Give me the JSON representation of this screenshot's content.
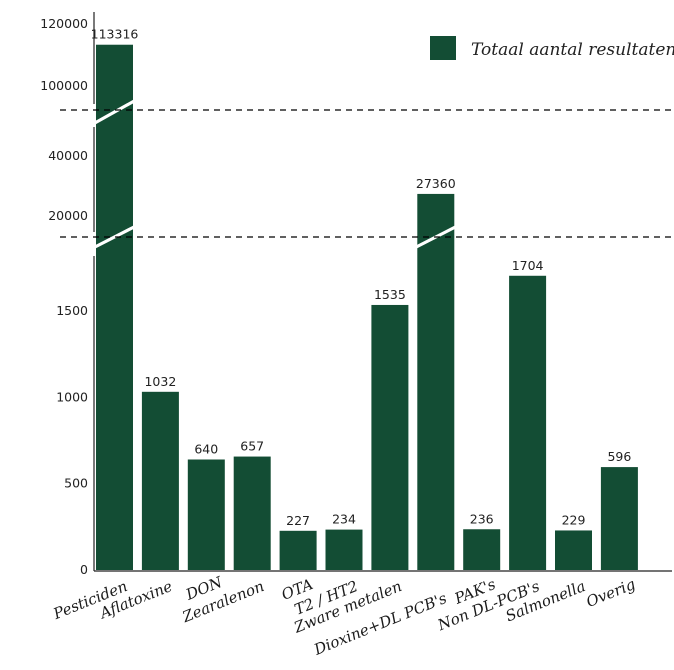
{
  "chart_data": {
    "type": "bar",
    "legend": {
      "label": "Totaal aantal resultaten",
      "position": "top-right"
    },
    "categories": [
      "Pesticiden",
      "Aflatoxine",
      "DON",
      "Zearalenon",
      "OTA",
      "T2 / HT2",
      "Zware metalen",
      "Dioxine+DL PCB's",
      "PAK's",
      "Non DL-PCB's",
      "Salmonella",
      "Overig"
    ],
    "values": [
      113316,
      1032,
      640,
      657,
      227,
      234,
      1535,
      27360,
      236,
      1704,
      229,
      596
    ],
    "axis_break": true,
    "y_ticks_lower": [
      "0",
      "500",
      "1000",
      "1500"
    ],
    "y_ticks_middle": [
      "20000",
      "40000"
    ],
    "y_ticks_upper": [
      "100000",
      "120000"
    ],
    "grid": false,
    "colors": {
      "bar": "#134d34",
      "axis": "#222222",
      "break_line": "#000000"
    }
  }
}
